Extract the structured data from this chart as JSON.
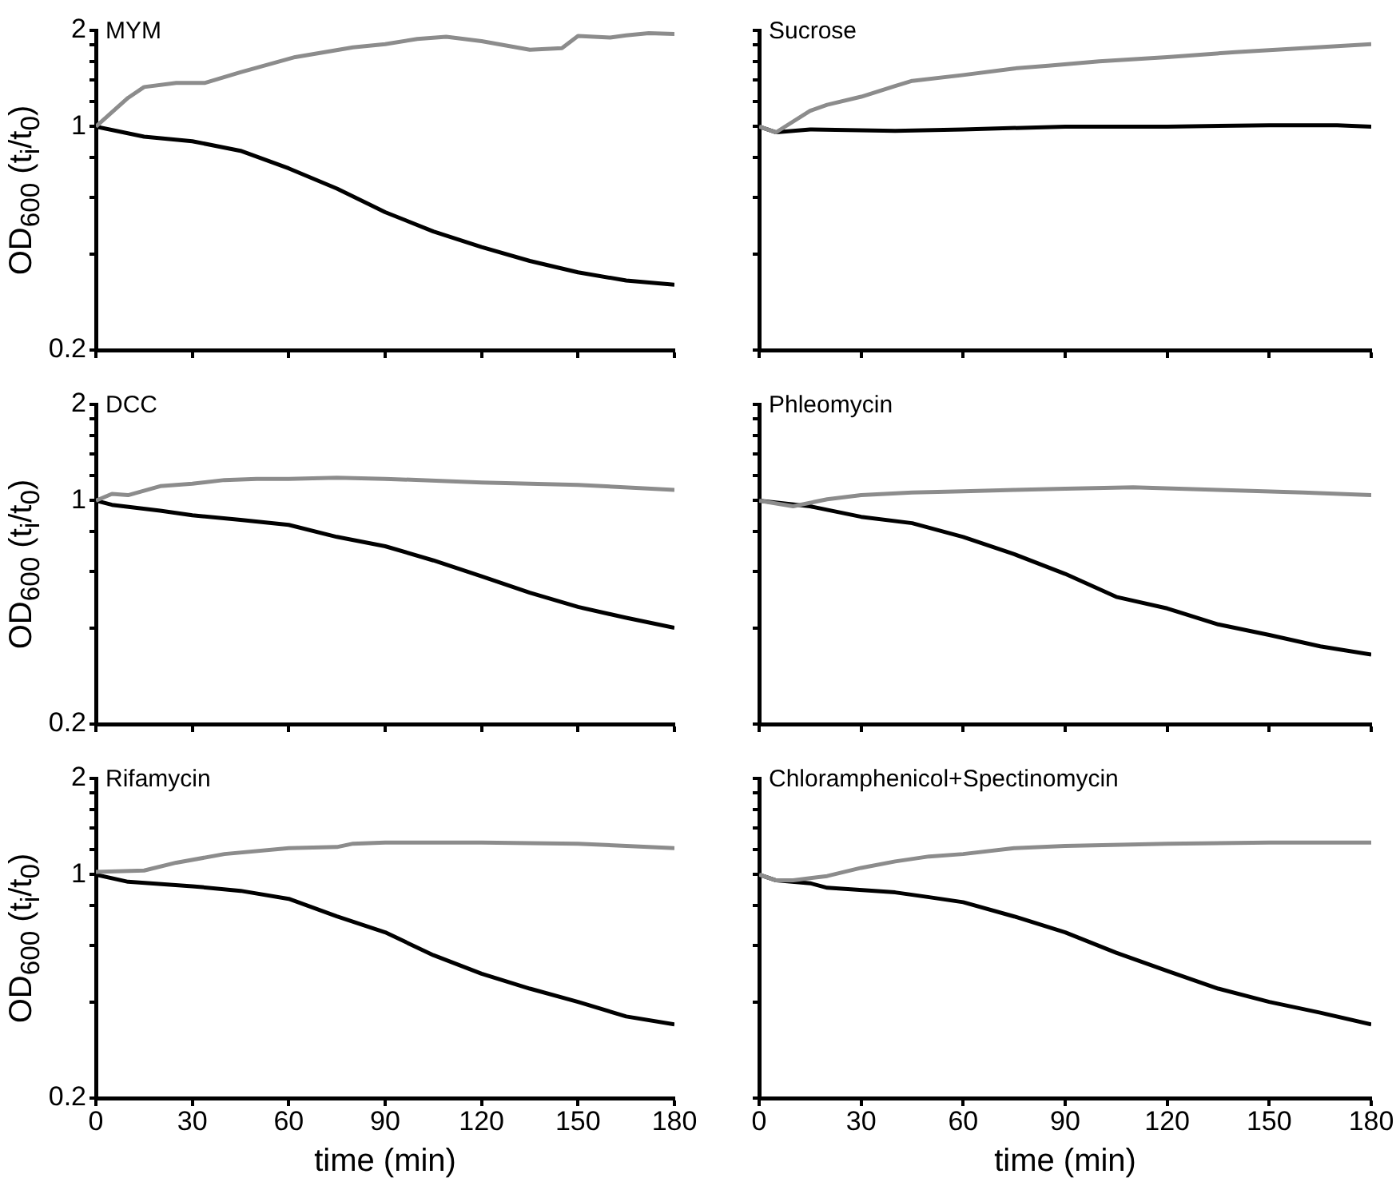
{
  "chart_data": [
    {
      "type": "line",
      "title": "MYM",
      "ylabel": "OD$_{600}$ (t$_{i}$/t$_{0}$)",
      "log": true,
      "tick_labels": "y",
      "xlim": [
        0,
        180
      ],
      "xticks": [
        {
          "value": 0,
          "label": null
        },
        {
          "value": 30,
          "label": null
        },
        {
          "value": 60,
          "label": null
        },
        {
          "value": 90,
          "label": null
        },
        {
          "value": 120,
          "label": null
        },
        {
          "value": 150,
          "label": null
        },
        {
          "value": 180,
          "label": null
        }
      ],
      "ylim": [
        0.2,
        2
      ],
      "yticks": [
        0.2,
        {
          "value": 0.4,
          "label": null
        },
        {
          "value": 0.6,
          "label": null
        },
        {
          "value": 0.8,
          "label": null
        },
        1,
        {
          "value": 1.2,
          "label": null
        },
        {
          "value": 1.4,
          "label": null
        },
        {
          "value": 1.6,
          "label": null
        },
        {
          "value": 1.8,
          "label": null
        },
        2
      ],
      "series": [
        {
          "color": "#8c8c8c",
          "x": [
            0,
            10,
            15,
            25,
            34,
            45,
            62,
            80,
            90,
            100,
            109,
            120,
            135,
            145,
            150,
            160,
            165,
            172,
            180
          ],
          "values": [
            1,
            1.23,
            1.33,
            1.37,
            1.37,
            1.48,
            1.65,
            1.77,
            1.81,
            1.88,
            1.91,
            1.85,
            1.74,
            1.76,
            1.92,
            1.9,
            1.93,
            1.96,
            1.95
          ]
        },
        {
          "color": "#000000",
          "x": [
            0,
            15,
            30,
            45,
            60,
            75,
            90,
            105,
            120,
            135,
            150,
            165,
            180
          ],
          "values": [
            1,
            0.93,
            0.9,
            0.84,
            0.74,
            0.64,
            0.54,
            0.47,
            0.42,
            0.38,
            0.35,
            0.33,
            0.32
          ]
        }
      ]
    },
    {
      "type": "line",
      "title": "Sucrose",
      "log": true,
      "tick_labels": false,
      "xlim": [
        0,
        180
      ],
      "xticks": [
        {
          "value": 0,
          "label": null
        },
        {
          "value": 30,
          "label": null
        },
        {
          "value": 60,
          "label": null
        },
        {
          "value": 90,
          "label": null
        },
        {
          "value": 120,
          "label": null
        },
        {
          "value": 150,
          "label": null
        },
        {
          "value": 180,
          "label": null
        }
      ],
      "ylim": [
        0.2,
        2
      ],
      "yticks": [
        {
          "value": 0.2,
          "label": null
        },
        {
          "value": 0.4,
          "label": null
        },
        {
          "value": 0.6,
          "label": null
        },
        {
          "value": 0.8,
          "label": null
        },
        {
          "value": 1,
          "label": null
        },
        {
          "value": 1.2,
          "label": null
        },
        {
          "value": 1.4,
          "label": null
        },
        {
          "value": 1.6,
          "label": null
        },
        {
          "value": 1.8,
          "label": null
        },
        {
          "value": 2,
          "label": null
        }
      ],
      "series": [
        {
          "color": "#8c8c8c",
          "x": [
            0,
            5,
            15,
            20,
            30,
            40,
            45,
            60,
            75,
            85,
            100,
            120,
            140,
            160,
            180
          ],
          "values": [
            1,
            0.96,
            1.12,
            1.17,
            1.24,
            1.34,
            1.39,
            1.45,
            1.52,
            1.55,
            1.6,
            1.65,
            1.71,
            1.76,
            1.81
          ]
        },
        {
          "color": "#000000",
          "x": [
            0,
            5,
            15,
            40,
            60,
            90,
            120,
            150,
            170,
            180
          ],
          "values": [
            1,
            0.96,
            0.98,
            0.97,
            0.98,
            1,
            1,
            1.01,
            1.01,
            1
          ]
        }
      ]
    },
    {
      "type": "line",
      "title": "DCC",
      "ylabel": "OD$_{600}$ (t$_{i}$/t$_{0}$)",
      "log": true,
      "tick_labels": "y",
      "xlim": [
        0,
        180
      ],
      "xticks": [
        {
          "value": 0,
          "label": null
        },
        {
          "value": 30,
          "label": null
        },
        {
          "value": 60,
          "label": null
        },
        {
          "value": 90,
          "label": null
        },
        {
          "value": 120,
          "label": null
        },
        {
          "value": 150,
          "label": null
        },
        {
          "value": 180,
          "label": null
        }
      ],
      "ylim": [
        0.2,
        2
      ],
      "yticks": [
        0.2,
        {
          "value": 0.4,
          "label": null
        },
        {
          "value": 0.6,
          "label": null
        },
        {
          "value": 0.8,
          "label": null
        },
        1,
        {
          "value": 1.2,
          "label": null
        },
        {
          "value": 1.4,
          "label": null
        },
        {
          "value": 1.6,
          "label": null
        },
        {
          "value": 1.8,
          "label": null
        },
        2
      ],
      "series": [
        {
          "color": "#8c8c8c",
          "x": [
            0,
            5,
            10,
            20,
            30,
            40,
            50,
            60,
            75,
            90,
            120,
            150,
            180
          ],
          "values": [
            1,
            1.05,
            1.04,
            1.11,
            1.13,
            1.16,
            1.17,
            1.17,
            1.18,
            1.17,
            1.14,
            1.12,
            1.08
          ]
        },
        {
          "color": "#000000",
          "x": [
            0,
            5,
            20,
            30,
            45,
            60,
            75,
            90,
            105,
            120,
            135,
            150,
            165,
            180
          ],
          "values": [
            1,
            0.97,
            0.93,
            0.9,
            0.87,
            0.84,
            0.77,
            0.72,
            0.65,
            0.58,
            0.515,
            0.465,
            0.43,
            0.4
          ]
        }
      ]
    },
    {
      "type": "line",
      "title": "Phleomycin",
      "log": true,
      "tick_labels": false,
      "xlim": [
        0,
        180
      ],
      "xticks": [
        {
          "value": 0,
          "label": null
        },
        {
          "value": 30,
          "label": null
        },
        {
          "value": 60,
          "label": null
        },
        {
          "value": 90,
          "label": null
        },
        {
          "value": 120,
          "label": null
        },
        {
          "value": 150,
          "label": null
        },
        {
          "value": 180,
          "label": null
        }
      ],
      "ylim": [
        0.2,
        2
      ],
      "yticks": [
        {
          "value": 0.2,
          "label": null
        },
        {
          "value": 0.4,
          "label": null
        },
        {
          "value": 0.6,
          "label": null
        },
        {
          "value": 0.8,
          "label": null
        },
        {
          "value": 1,
          "label": null
        },
        {
          "value": 1.2,
          "label": null
        },
        {
          "value": 1.4,
          "label": null
        },
        {
          "value": 1.6,
          "label": null
        },
        {
          "value": 1.8,
          "label": null
        },
        {
          "value": 2,
          "label": null
        }
      ],
      "series": [
        {
          "color": "#8c8c8c",
          "x": [
            0,
            10,
            20,
            30,
            45,
            60,
            75,
            90,
            110,
            135,
            160,
            180
          ],
          "values": [
            1,
            0.96,
            1.01,
            1.04,
            1.06,
            1.07,
            1.08,
            1.09,
            1.1,
            1.08,
            1.06,
            1.04
          ]
        },
        {
          "color": "#000000",
          "x": [
            0,
            15,
            30,
            45,
            60,
            75,
            90,
            105,
            120,
            135,
            150,
            165,
            180
          ],
          "values": [
            1,
            0.96,
            0.89,
            0.85,
            0.77,
            0.68,
            0.59,
            0.5,
            0.46,
            0.41,
            0.38,
            0.35,
            0.33
          ]
        }
      ]
    },
    {
      "type": "line",
      "title": "Rifamycin",
      "ylabel": "OD$_{600}$ (t$_{i}$/t$_{0}$)",
      "xlabel": "time (min)",
      "log": true,
      "xlim": [
        0,
        180
      ],
      "xticks": [
        0,
        30,
        60,
        90,
        120,
        150,
        180
      ],
      "ylim": [
        0.2,
        2
      ],
      "yticks": [
        0.2,
        {
          "value": 0.4,
          "label": null
        },
        {
          "value": 0.6,
          "label": null
        },
        {
          "value": 0.8,
          "label": null
        },
        1,
        {
          "value": 1.2,
          "label": null
        },
        {
          "value": 1.4,
          "label": null
        },
        {
          "value": 1.6,
          "label": null
        },
        {
          "value": 1.8,
          "label": null
        },
        2
      ],
      "series": [
        {
          "color": "#8c8c8c",
          "x": [
            0,
            15,
            25,
            40,
            60,
            75,
            80,
            90,
            120,
            150,
            180
          ],
          "values": [
            1.02,
            1.03,
            1.09,
            1.16,
            1.21,
            1.22,
            1.25,
            1.26,
            1.26,
            1.25,
            1.21
          ]
        },
        {
          "color": "#000000",
          "x": [
            0,
            10,
            30,
            45,
            60,
            75,
            90,
            105,
            120,
            135,
            150,
            165,
            180
          ],
          "values": [
            1,
            0.95,
            0.92,
            0.89,
            0.84,
            0.74,
            0.66,
            0.56,
            0.49,
            0.44,
            0.4,
            0.36,
            0.34
          ]
        }
      ]
    },
    {
      "type": "line",
      "title": "Chloramphenicol+Spectinomycin",
      "xlabel": "time (min)",
      "log": true,
      "tick_labels": "x",
      "xlim": [
        0,
        180
      ],
      "xticks": [
        0,
        30,
        60,
        90,
        120,
        150,
        180
      ],
      "ylim": [
        0.2,
        2
      ],
      "yticks": [
        {
          "value": 0.2,
          "label": null
        },
        {
          "value": 0.4,
          "label": null
        },
        {
          "value": 0.6,
          "label": null
        },
        {
          "value": 0.8,
          "label": null
        },
        {
          "value": 1,
          "label": null
        },
        {
          "value": 1.2,
          "label": null
        },
        {
          "value": 1.4,
          "label": null
        },
        {
          "value": 1.6,
          "label": null
        },
        {
          "value": 1.8,
          "label": null
        },
        {
          "value": 2,
          "label": null
        }
      ],
      "series": [
        {
          "color": "#8c8c8c",
          "x": [
            0,
            5,
            10,
            20,
            30,
            40,
            50,
            60,
            75,
            90,
            120,
            150,
            180
          ],
          "values": [
            1,
            0.96,
            0.96,
            0.99,
            1.05,
            1.1,
            1.14,
            1.16,
            1.21,
            1.23,
            1.25,
            1.26,
            1.26
          ]
        },
        {
          "color": "#000000",
          "x": [
            0,
            5,
            15,
            20,
            40,
            50,
            60,
            75,
            90,
            105,
            120,
            135,
            150,
            165,
            180
          ],
          "values": [
            1,
            0.96,
            0.94,
            0.91,
            0.88,
            0.85,
            0.82,
            0.74,
            0.66,
            0.57,
            0.5,
            0.44,
            0.4,
            0.37,
            0.34
          ]
        }
      ]
    }
  ]
}
